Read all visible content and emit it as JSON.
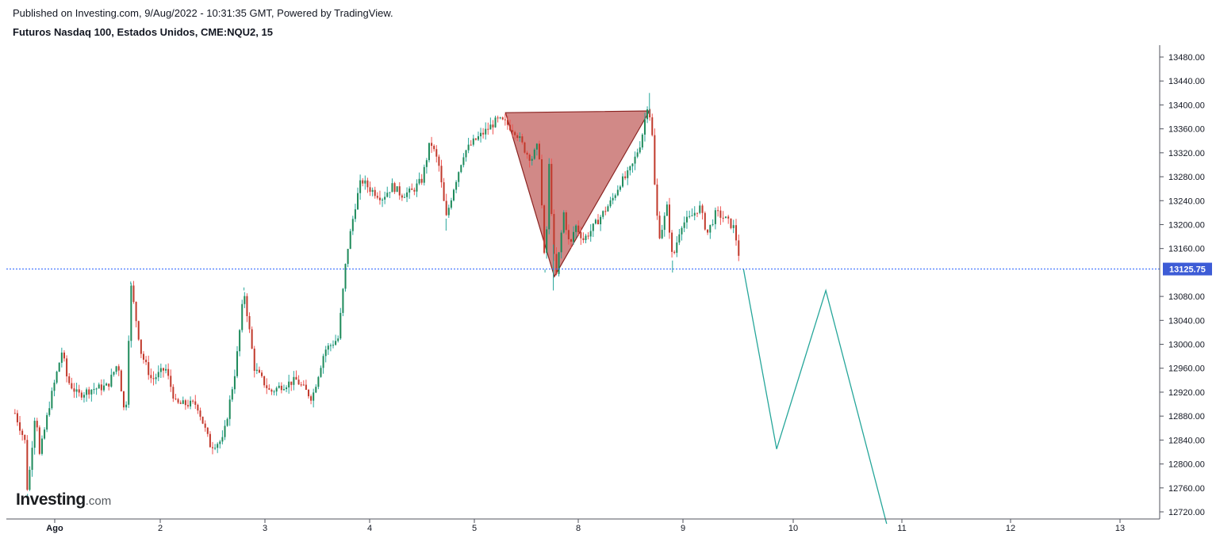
{
  "header": {
    "published": "Published on Investing.com, 9/Aug/2022 - 10:31:35 GMT, Powered by TradingView.",
    "instrument": "Futuros Nasdaq 100, Estados Unidos, CME:NQU2, 15"
  },
  "logo": {
    "main": "Investing",
    "suffix": ".com"
  },
  "colors": {
    "up": "#26a69a",
    "up_body": "#1e8a5a",
    "down": "#ef5350",
    "down_body": "#c0392b",
    "price_line": "#2962ff",
    "price_label_bg": "#3d5cd6",
    "triangle_fill": "#c1615f",
    "triangle_stroke": "#8b2422",
    "projection": "#26a69a",
    "axis": "#50535e"
  },
  "chart_data": {
    "type": "candlestick",
    "title": "Futuros Nasdaq 100, Estados Unidos, CME:NQU2, 15",
    "ylim": [
      12705,
      13495
    ],
    "y_ticks": [
      "13480.00",
      "13440.00",
      "13400.00",
      "13360.00",
      "13320.00",
      "13280.00",
      "13240.00",
      "13200.00",
      "13160.00",
      "13080.00",
      "13040.00",
      "13000.00",
      "12960.00",
      "12920.00",
      "12880.00",
      "12840.00",
      "12800.00",
      "12760.00",
      "12720.00"
    ],
    "x_ticks": [
      {
        "label": "Ago",
        "day": 1
      },
      {
        "label": "2",
        "day": 2
      },
      {
        "label": "3",
        "day": 3
      },
      {
        "label": "4",
        "day": 4
      },
      {
        "label": "5",
        "day": 5
      },
      {
        "label": "8",
        "day": 6
      },
      {
        "label": "9",
        "day": 7
      },
      {
        "label": "10",
        "day": 8
      },
      {
        "label": "11",
        "day": 9
      },
      {
        "label": "12",
        "day": 10
      },
      {
        "label": "13",
        "day": 11
      }
    ],
    "current_price": 13125.75,
    "current_price_label": "13125.75",
    "price_path": [
      [
        0.62,
        12885
      ],
      [
        0.72,
        12835
      ],
      [
        0.74,
        12750
      ],
      [
        0.82,
        12900
      ],
      [
        0.85,
        12810
      ],
      [
        0.95,
        12900
      ],
      [
        1.07,
        12990
      ],
      [
        1.12,
        12940
      ],
      [
        1.22,
        12915
      ],
      [
        1.35,
        12925
      ],
      [
        1.5,
        12930
      ],
      [
        1.6,
        12970
      ],
      [
        1.67,
        12870
      ],
      [
        1.72,
        13100
      ],
      [
        1.82,
        12985
      ],
      [
        1.92,
        12940
      ],
      [
        2.05,
        12960
      ],
      [
        2.15,
        12900
      ],
      [
        2.35,
        12900
      ],
      [
        2.48,
        12830
      ],
      [
        2.6,
        12840
      ],
      [
        2.72,
        12960
      ],
      [
        2.8,
        13090
      ],
      [
        2.9,
        12960
      ],
      [
        3.05,
        12920
      ],
      [
        3.15,
        12930
      ],
      [
        3.3,
        12940
      ],
      [
        3.45,
        12910
      ],
      [
        3.57,
        12990
      ],
      [
        3.7,
        13010
      ],
      [
        3.78,
        13150
      ],
      [
        3.86,
        13230
      ],
      [
        3.92,
        13275
      ],
      [
        4.0,
        13260
      ],
      [
        4.12,
        13245
      ],
      [
        4.22,
        13265
      ],
      [
        4.3,
        13250
      ],
      [
        4.4,
        13255
      ],
      [
        4.5,
        13275
      ],
      [
        4.58,
        13340
      ],
      [
        4.66,
        13300
      ],
      [
        4.73,
        13210
      ],
      [
        4.8,
        13260
      ],
      [
        4.9,
        13320
      ],
      [
        5.0,
        13340
      ],
      [
        5.1,
        13355
      ],
      [
        5.22,
        13375
      ],
      [
        5.3,
        13370
      ],
      [
        5.4,
        13355
      ],
      [
        5.5,
        13320
      ],
      [
        5.55,
        13310
      ],
      [
        5.62,
        13335
      ],
      [
        5.68,
        13120
      ],
      [
        5.72,
        13300
      ],
      [
        5.78,
        13100
      ],
      [
        5.86,
        13220
      ],
      [
        5.92,
        13160
      ],
      [
        5.97,
        13200
      ],
      [
        6.05,
        13175
      ],
      [
        6.12,
        13190
      ],
      [
        6.22,
        13215
      ],
      [
        6.32,
        13240
      ],
      [
        6.4,
        13270
      ],
      [
        6.46,
        13280
      ],
      [
        6.52,
        13300
      ],
      [
        6.6,
        13340
      ],
      [
        6.66,
        13400
      ],
      [
        6.7,
        13370
      ],
      [
        6.74,
        13230
      ],
      [
        6.78,
        13180
      ],
      [
        6.85,
        13230
      ],
      [
        6.9,
        13140
      ],
      [
        6.98,
        13200
      ],
      [
        7.06,
        13210
      ],
      [
        7.15,
        13230
      ],
      [
        7.22,
        13185
      ],
      [
        7.3,
        13220
      ],
      [
        7.38,
        13210
      ],
      [
        7.46,
        13195
      ],
      [
        7.5,
        13160
      ],
      [
        7.52,
        13128
      ]
    ],
    "spikes": [
      [
        0.74,
        12745
      ],
      [
        1.72,
        13105
      ],
      [
        2.8,
        13095
      ],
      [
        5.76,
        13090
      ],
      [
        6.68,
        13420
      ],
      [
        6.9,
        13120
      ],
      [
        4.73,
        13190
      ],
      [
        5.68,
        13125
      ]
    ],
    "triangle": [
      [
        5.3,
        13387
      ],
      [
        6.68,
        13390
      ],
      [
        5.77,
        13113
      ]
    ],
    "projection": [
      [
        7.55,
        13125
      ],
      [
        7.85,
        12825
      ],
      [
        8.3,
        13090
      ],
      [
        8.86,
        12700
      ]
    ]
  }
}
